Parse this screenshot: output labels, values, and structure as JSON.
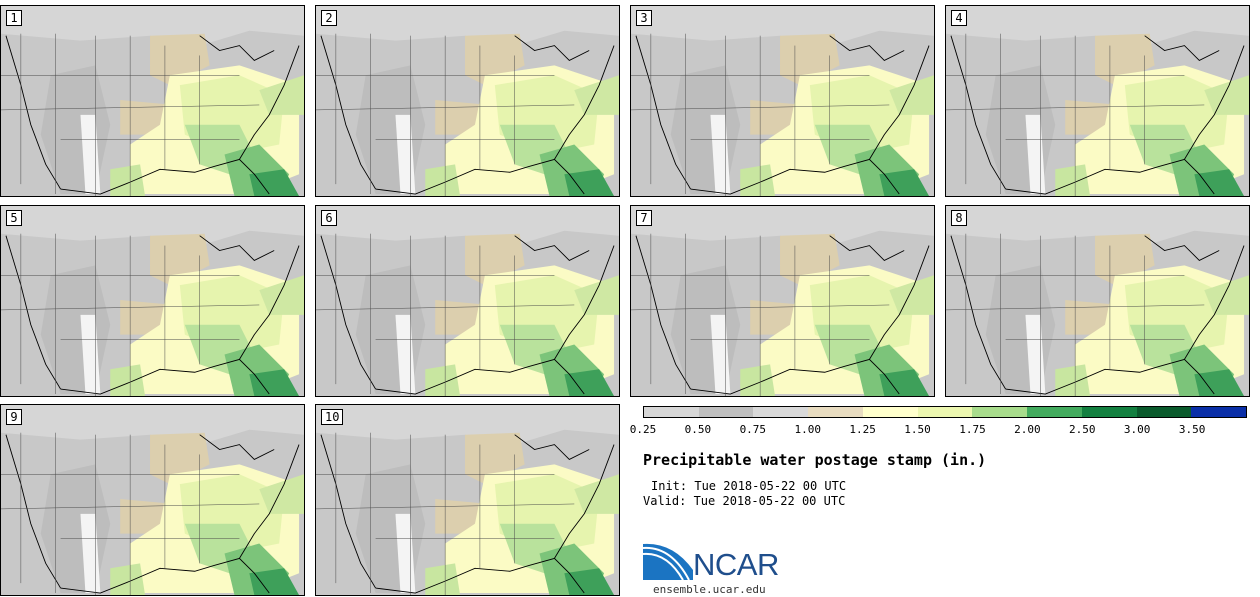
{
  "panels": [
    {
      "label": "1"
    },
    {
      "label": "2"
    },
    {
      "label": "3"
    },
    {
      "label": "4"
    },
    {
      "label": "5"
    },
    {
      "label": "6"
    },
    {
      "label": "7"
    },
    {
      "label": "8"
    },
    {
      "label": "9"
    },
    {
      "label": "10"
    }
  ],
  "colorbar": {
    "colors": [
      "#d7d7d7",
      "#bfbfbf",
      "#d9d9d9",
      "#e8dcc0",
      "#ffffcc",
      "#ecf7b0",
      "#a8dc8c",
      "#43ab5e",
      "#138040",
      "#0a5a2c",
      "#0a2fa8"
    ],
    "labels": [
      "0.25",
      "0.50",
      "0.75",
      "1.00",
      "1.25",
      "1.50",
      "1.75",
      "2.00",
      "2.50",
      "3.00",
      "3.50"
    ]
  },
  "title": "Precipitable water postage stamp (in.)",
  "init": "Init: Tue 2018-05-22 00 UTC",
  "valid": "Valid: Tue 2018-05-22 00 UTC",
  "logo": {
    "text": "NCAR",
    "url_text": "ensemble.ucar.edu"
  }
}
